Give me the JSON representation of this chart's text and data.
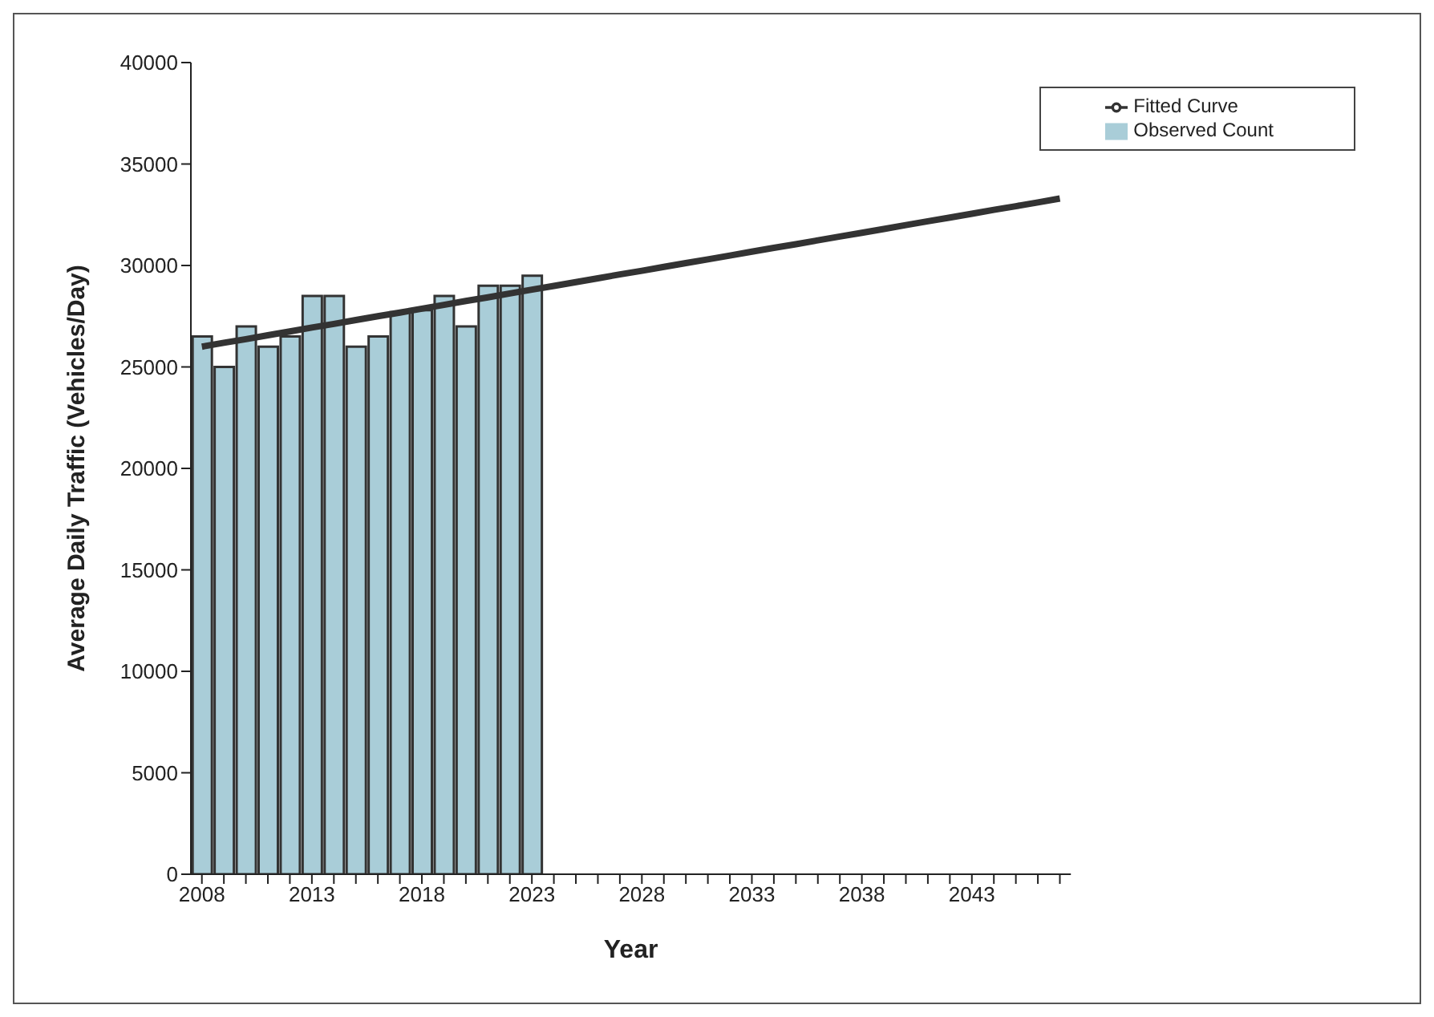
{
  "chart_data": {
    "type": "bar",
    "xlabel": "Year",
    "ylabel": "Average Daily Traffic (Vehicles/Day)",
    "categories": [
      "2008",
      null,
      null,
      null,
      null,
      "2013",
      null,
      null,
      null,
      null,
      "2018",
      null,
      null,
      null,
      null,
      "2023",
      null,
      null,
      null,
      null,
      "2028",
      null,
      null,
      null,
      null,
      "2033",
      null,
      null,
      null,
      null,
      "2038",
      null,
      null,
      null,
      null,
      "2043",
      null,
      null,
      null,
      null
    ],
    "series": [
      {
        "name": "Observed Count",
        "color": "#a9cdd8",
        "values": [
          26500,
          25000,
          27000,
          26000,
          26500,
          28500,
          28500,
          26000,
          26500,
          27700,
          27800,
          28500,
          27000,
          29000,
          29000,
          29500,
          null,
          null,
          null,
          null,
          null,
          null,
          null,
          null,
          null,
          null,
          null,
          null,
          null,
          null,
          null,
          null,
          null,
          null,
          null,
          null,
          null,
          null,
          null,
          null
        ]
      },
      {
        "name": "Fitted Curve",
        "type": "line",
        "color": "#333333",
        "values": [
          26000,
          26190,
          26370,
          26560,
          26750,
          26940,
          27120,
          27310,
          27500,
          27680,
          27870,
          28060,
          28250,
          28430,
          28620,
          28810,
          28990,
          29180,
          29370,
          29560,
          29740,
          29930,
          30120,
          30300,
          30490,
          30680,
          30870,
          31050,
          31240,
          31430,
          31610,
          31800,
          31990,
          32180,
          32360,
          32550,
          32740,
          32920,
          33110,
          33300
        ]
      }
    ],
    "ylim": [
      0,
      40000
    ],
    "yticks": [
      0,
      5000,
      10000,
      15000,
      20000,
      25000,
      30000,
      35000,
      40000
    ],
    "legend": "top right",
    "marker": "none"
  }
}
